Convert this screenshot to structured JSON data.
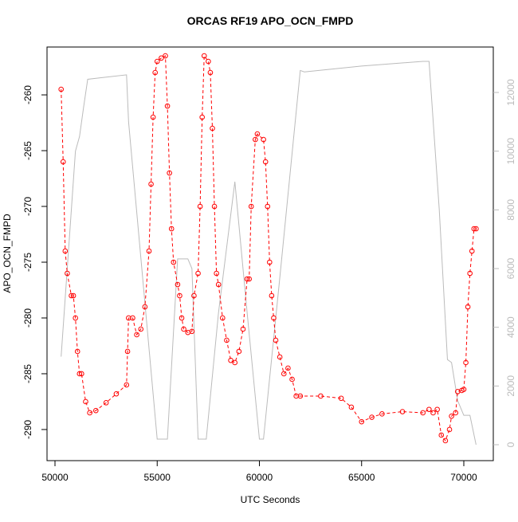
{
  "chart_data": {
    "type": "line",
    "title": "ORCAS RF19 APO_OCN_FMPD",
    "x_label": "UTC Seconds",
    "y_label": "APO_OCN_FMPD",
    "xlim": [
      49610,
      71443
    ],
    "ylim": [
      -292.79,
      -255.71
    ],
    "y2lim": [
      -543,
      13548
    ],
    "xticks": [
      50000,
      55000,
      60000,
      65000,
      70000
    ],
    "yticks": [
      -290,
      -285,
      -280,
      -275,
      -270,
      -265,
      -260
    ],
    "y2ticks": [
      0,
      2000,
      4000,
      6000,
      8000,
      10000,
      12000
    ],
    "series": [
      {
        "color": "#bbbbbb",
        "axis": "y2",
        "x": [
          50300,
          50500,
          50700,
          51000,
          51200,
          51400,
          51600,
          53500,
          53600,
          54300,
          55000,
          55500,
          56000,
          56500,
          56700,
          57000,
          57400,
          58000,
          58800,
          59400,
          60000,
          60200,
          61000,
          62000,
          62200,
          65000,
          68000,
          68300,
          68800,
          69200,
          69400,
          69700,
          70000,
          70300,
          70600
        ],
        "values": [
          3000,
          5000,
          7000,
          10000,
          10500,
          11500,
          12450,
          12600,
          11000,
          5600,
          190,
          190,
          6330,
          6330,
          6000,
          190,
          190,
          4500,
          8960,
          4500,
          190,
          190,
          5700,
          12750,
          12700,
          12900,
          13060,
          13060,
          8000,
          2900,
          2800,
          1500,
          1000,
          1000,
          0
        ]
      },
      {
        "color": "#ff0000",
        "x": [
          50300,
          50400,
          50500,
          50600,
          50800,
          50900,
          51000,
          51100,
          51200,
          51300,
          51500,
          51700,
          52000,
          52500,
          53000,
          53500,
          53550,
          53600,
          53800,
          54000,
          54200,
          54400,
          54600,
          54700,
          54800,
          54900,
          55000,
          55200,
          55400,
          55500,
          55600,
          55700,
          55800,
          56000,
          56100,
          56200,
          56300,
          56500,
          56700,
          56800,
          57000,
          57100,
          57200,
          57300,
          57500,
          57600,
          57700,
          57800,
          57900,
          58000,
          58200,
          58400,
          58600,
          58800,
          59000,
          59200,
          59400,
          59500,
          59600,
          59800,
          59900,
          60200,
          60300,
          60400,
          60500,
          60600,
          60700,
          60800,
          61000,
          61200,
          61400,
          61600,
          61800,
          62000,
          63000,
          64000,
          64500,
          65000,
          65500,
          66000,
          67000,
          68000,
          68300,
          68500,
          68700,
          68900,
          69100,
          69300,
          69400,
          69600,
          69700,
          69900,
          70000,
          70100,
          70200,
          70300,
          70400,
          70500,
          70600
        ],
        "values": [
          -259.5,
          -266,
          -274,
          -276,
          -278,
          -278,
          -280,
          -283,
          -285,
          -285,
          -287.5,
          -288.5,
          -288.3,
          -287.6,
          -286.8,
          -286,
          -283,
          -280,
          -280,
          -281.5,
          -281,
          -279,
          -274,
          -268,
          -262,
          -258,
          -257,
          -256.7,
          -256.5,
          -261,
          -267,
          -272,
          -275,
          -277,
          -278,
          -280,
          -281,
          -281.3,
          -281.2,
          -278,
          -276,
          -270,
          -262,
          -256.5,
          -257,
          -258,
          -263,
          -270,
          -276,
          -277,
          -280,
          -282,
          -283.8,
          -284,
          -283,
          -281,
          -276.5,
          -276.5,
          -270,
          -264,
          -263.5,
          -264,
          -266,
          -270,
          -275,
          -278,
          -280,
          -282,
          -283.5,
          -285,
          -284.5,
          -285.5,
          -287,
          -287,
          -287,
          -287.2,
          -288,
          -289.3,
          -288.9,
          -288.6,
          -288.4,
          -288.5,
          -288.2,
          -288.5,
          -288.2,
          -290.5,
          -291,
          -290,
          -288.8,
          -288.5,
          -286.6,
          -286.5,
          -286.4,
          -284,
          -279,
          -276,
          -274,
          -272,
          -272
        ]
      }
    ]
  }
}
